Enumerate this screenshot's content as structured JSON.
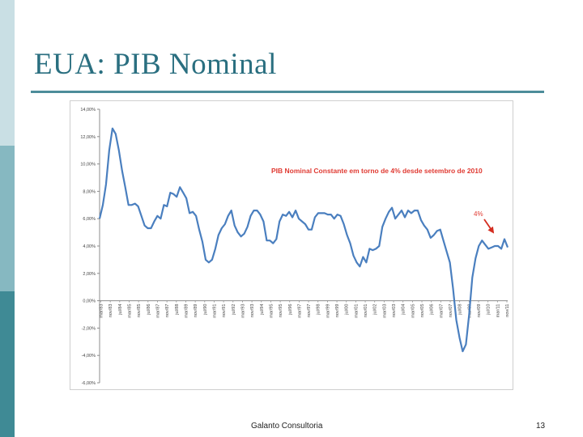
{
  "slide": {
    "title": "EUA: PIB Nominal",
    "footer_text": "Galanto Consultoria",
    "page_number": "13"
  },
  "colors": {
    "series_line": "#4a7fbf",
    "annotation_text": "#e03a32",
    "arrow": "#d42d20",
    "title": "#2a6f80",
    "side_bar": [
      "#c9dfe4",
      "#86b8c1",
      "#3f8a95"
    ]
  },
  "chart_data": {
    "type": "line",
    "title": "PIB Nominal Constante em torno de  4% desde setembro de 2010",
    "annotation": "4%",
    "ylim": [
      -6,
      14
    ],
    "y_ticks": [
      "14,00%",
      "12,00%",
      "10,00%",
      "8,00%",
      "6,00%",
      "4,00%",
      "2,00%",
      "0,00%",
      "-2,00%",
      "-4,00%",
      "-6,00%"
    ],
    "x_ticks": [
      "mar/83",
      "nov/83",
      "jul/84",
      "mar/85",
      "nov/85",
      "jul/86",
      "mar/87",
      "nov/87",
      "jul/88",
      "mar/89",
      "nov/89",
      "jul/90",
      "mar/91",
      "nov/91",
      "jul/92",
      "mar/93",
      "nov/93",
      "jul/94",
      "mar/95",
      "nov/95",
      "jul/96",
      "mar/97",
      "nov/97",
      "jul/98",
      "mar/99",
      "nov/99",
      "jul/00",
      "mar/01",
      "nov/01",
      "jul/02",
      "mar/03",
      "nov/03",
      "jul/04",
      "mar/05",
      "nov/05",
      "jul/06",
      "mar/07",
      "nov/07",
      "jul/08",
      "mar/09",
      "nov/09",
      "jul/10",
      "mar/11",
      "nov/11"
    ],
    "grid": false,
    "series": [
      {
        "values": [
          6.0,
          7.0,
          8.5,
          11.0,
          12.6,
          12.2,
          11.0,
          9.5,
          8.3,
          7.0,
          7.0,
          7.1,
          6.9,
          6.2,
          5.5,
          5.3,
          5.3,
          5.8,
          6.2,
          6.0,
          7.0,
          6.9,
          7.9,
          7.8,
          7.6,
          8.3,
          7.9,
          7.5,
          6.4,
          6.5,
          6.2,
          5.2,
          4.3,
          3.0,
          2.8,
          3.0,
          3.8,
          4.8,
          5.3,
          5.6,
          6.2,
          6.6,
          5.5,
          5.0,
          4.7,
          4.9,
          5.4,
          6.2,
          6.6,
          6.6,
          6.3,
          5.8,
          4.4,
          4.4,
          4.2,
          4.5,
          5.8,
          6.3,
          6.2,
          6.5,
          6.1,
          6.6,
          6.0,
          5.8,
          5.6,
          5.2,
          5.2,
          6.1,
          6.4,
          6.4,
          6.4,
          6.3,
          6.3,
          6.0,
          6.3,
          6.2,
          5.6,
          4.8,
          4.2,
          3.3,
          2.8,
          2.5,
          3.2,
          2.8,
          3.8,
          3.7,
          3.8,
          4.0,
          5.4,
          6.0,
          6.5,
          6.8,
          6.0,
          6.3,
          6.6,
          6.1,
          6.6,
          6.4,
          6.6,
          6.6,
          5.9,
          5.5,
          5.2,
          4.6,
          4.8,
          5.1,
          5.2,
          4.4,
          3.6,
          2.8,
          0.9,
          -1.4,
          -2.7,
          -3.7,
          -3.2,
          -1.0,
          1.7,
          3.1,
          4.0,
          4.4,
          4.1,
          3.8,
          3.9,
          4.0,
          4.0,
          3.8,
          4.5,
          3.9
        ]
      }
    ]
  }
}
